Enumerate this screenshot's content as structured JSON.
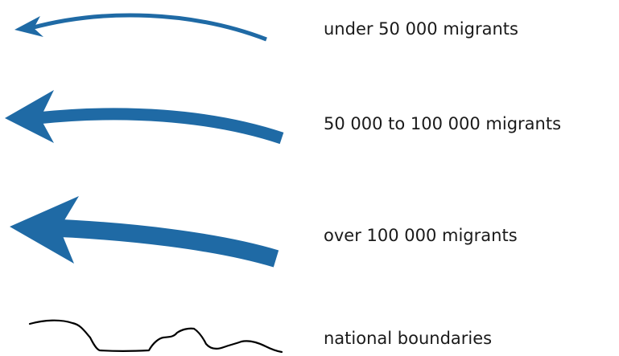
{
  "legend": {
    "items": [
      {
        "label": "under 50 000 migrants",
        "symbol": "thin-arrow-icon"
      },
      {
        "label": "50 000 to 100 000 migrants",
        "symbol": "medium-arrow-icon"
      },
      {
        "label": "over 100 000 migrants",
        "symbol": "thick-arrow-icon"
      },
      {
        "label": "national boundaries",
        "symbol": "boundary-line-icon"
      }
    ]
  },
  "colors": {
    "arrow": "#1f6aa5",
    "boundary": "#000000",
    "text": "#1a1a1a",
    "background": "#ffffff"
  }
}
